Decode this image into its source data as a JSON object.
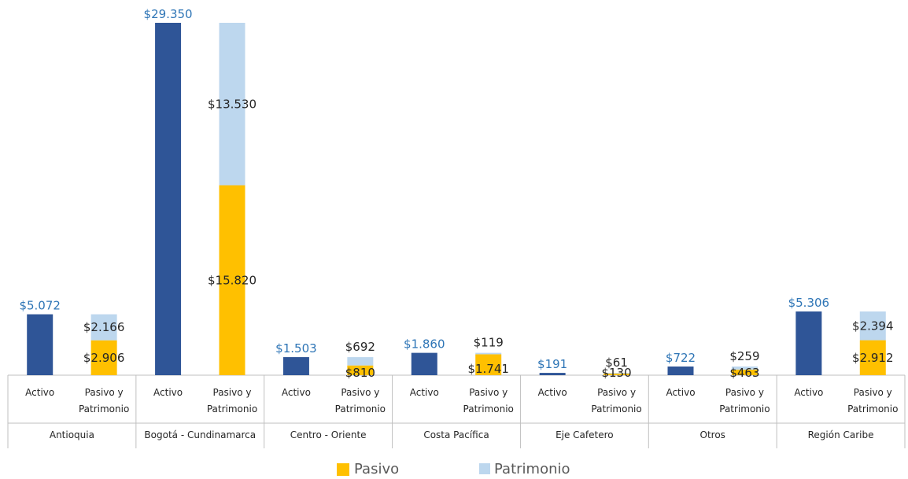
{
  "chart_data": {
    "type": "bar",
    "stacked": true,
    "title": "",
    "xlabel": "",
    "ylabel": "",
    "ylim": [
      0,
      29350
    ],
    "grid": false,
    "legend_position": "bottom",
    "groups": [
      {
        "name": "Antioquia",
        "bars": [
          {
            "label": "Activo",
            "value": 5072,
            "value_label": "$5.072"
          },
          {
            "label": "Pasivo y Patrimonio",
            "pasivo": 2906,
            "patrimonio": 2166,
            "pasivo_label": "$2.906",
            "patrimonio_label": "$2.166"
          }
        ]
      },
      {
        "name": "Bogotá - Cundinamarca",
        "bars": [
          {
            "label": "Activo",
            "value": 29350,
            "value_label": "$29.350"
          },
          {
            "label": "Pasivo y Patrimonio",
            "pasivo": 15820,
            "patrimonio": 13530,
            "pasivo_label": "$15.820",
            "patrimonio_label": "$13.530"
          }
        ]
      },
      {
        "name": "Centro - Oriente",
        "bars": [
          {
            "label": "Activo",
            "value": 1503,
            "value_label": "$1.503"
          },
          {
            "label": "Pasivo y Patrimonio",
            "pasivo": 810,
            "patrimonio": 692,
            "pasivo_label": "$810",
            "patrimonio_label": "$692"
          }
        ]
      },
      {
        "name": "Costa Pacífica",
        "bars": [
          {
            "label": "Activo",
            "value": 1860,
            "value_label": "$1.860"
          },
          {
            "label": "Pasivo y Patrimonio",
            "pasivo": 1741,
            "patrimonio": 119,
            "pasivo_label": "$1.741",
            "patrimonio_label": "$119"
          }
        ]
      },
      {
        "name": "Eje Cafetero",
        "bars": [
          {
            "label": "Activo",
            "value": 191,
            "value_label": "$191"
          },
          {
            "label": "Pasivo y Patrimonio",
            "pasivo": 130,
            "patrimonio": 61,
            "pasivo_label": "$130",
            "patrimonio_label": "$61"
          }
        ]
      },
      {
        "name": "Otros",
        "bars": [
          {
            "label": "Activo",
            "value": 722,
            "value_label": "$722"
          },
          {
            "label": "Pasivo y Patrimonio",
            "pasivo": 463,
            "patrimonio": 259,
            "pasivo_label": "$463",
            "patrimonio_label": "$259"
          }
        ]
      },
      {
        "name": "Región Caribe",
        "bars": [
          {
            "label": "Activo",
            "value": 5306,
            "value_label": "$5.306"
          },
          {
            "label": "Pasivo y Patrimonio",
            "pasivo": 2912,
            "patrimonio": 2394,
            "pasivo_label": "$2.912",
            "patrimonio_label": "$2.394"
          }
        ]
      }
    ],
    "series": [
      {
        "name": "Pasivo",
        "color": "#FFC000"
      },
      {
        "name": "Patrimonio",
        "color": "#BDD7EE"
      }
    ],
    "activo_color": "#2F5597",
    "activo_label_color": "#2E75B6"
  }
}
